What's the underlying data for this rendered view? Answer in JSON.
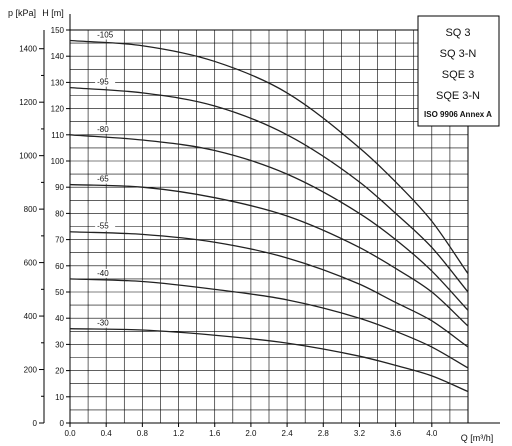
{
  "chart_data": {
    "type": "line",
    "xlabel": "Q [m³/h]",
    "ylabel_left": "p [kPa]",
    "ylabel_right": "H [m]",
    "xlim": [
      0,
      4.4
    ],
    "ylim": [
      0,
      150
    ],
    "x_ticks": [
      "0.0",
      "0.4",
      "0.8",
      "1.2",
      "1.6",
      "2.0",
      "2.4",
      "2.8",
      "3.2",
      "3.6",
      "4.0"
    ],
    "h_ticks": [
      "0",
      "10",
      "20",
      "30",
      "40",
      "50",
      "60",
      "70",
      "80",
      "90",
      "100",
      "110",
      "120",
      "130",
      "140",
      "150"
    ],
    "p_ticks": [
      "0",
      "200",
      "400",
      "600",
      "800",
      "1000",
      "1200",
      "1400"
    ],
    "grid": true,
    "legend_lines": [
      "SQ 3",
      "SQ 3-N",
      "SQE 3",
      "SQE 3-N"
    ],
    "legend_note": "ISO 9906 Annex A",
    "series": [
      {
        "name": "-105",
        "x": [
          0,
          0.8,
          1.6,
          2.4,
          3.2,
          3.6,
          4.0,
          4.4
        ],
        "y": [
          146,
          144,
          138,
          126,
          105,
          92,
          77,
          57
        ]
      },
      {
        "name": "-95",
        "x": [
          0,
          0.8,
          1.6,
          2.4,
          3.2,
          3.6,
          4.0,
          4.4
        ],
        "y": [
          128,
          126,
          121,
          110,
          92,
          80,
          67,
          50
        ]
      },
      {
        "name": "-80",
        "x": [
          0,
          0.8,
          1.6,
          2.4,
          3.2,
          3.6,
          4.0,
          4.4
        ],
        "y": [
          110,
          108,
          104,
          95,
          80,
          70,
          58,
          43
        ]
      },
      {
        "name": "-65",
        "x": [
          0,
          0.8,
          1.6,
          2.4,
          3.2,
          3.6,
          4.0,
          4.4
        ],
        "y": [
          91,
          90,
          86,
          79,
          67,
          59,
          50,
          37
        ]
      },
      {
        "name": "-55",
        "x": [
          0,
          0.8,
          1.6,
          2.4,
          3.2,
          3.6,
          4.0,
          4.4
        ],
        "y": [
          73,
          72,
          69,
          63,
          53,
          46,
          39,
          29
        ]
      },
      {
        "name": "-40",
        "x": [
          0,
          0.8,
          1.6,
          2.4,
          3.2,
          3.6,
          4.0,
          4.4
        ],
        "y": [
          55,
          54,
          51,
          47,
          40,
          35,
          29,
          21
        ]
      },
      {
        "name": "-30",
        "x": [
          0,
          0.8,
          1.6,
          2.4,
          3.2,
          3.6,
          4.0,
          4.4
        ],
        "y": [
          36,
          35.5,
          33.5,
          30.5,
          25.5,
          22,
          18,
          12
        ]
      }
    ]
  }
}
